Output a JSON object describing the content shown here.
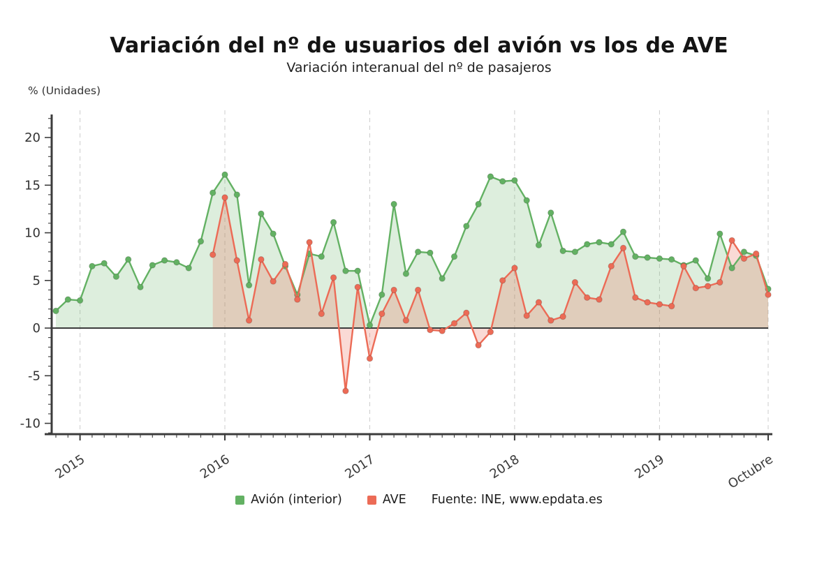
{
  "chart_data": {
    "type": "line",
    "title": "Variación del nº de usuarios del avión vs los de AVE",
    "subtitle": "Variación interanual del nº de pasajeros",
    "ylabel": "% (Unidades)",
    "source": "Fuente: INE, www.epdata.es",
    "ylim": [
      -10,
      20
    ],
    "yticks": [
      20,
      15,
      10,
      5,
      0,
      -5,
      -10
    ],
    "n_points": 60,
    "x_start": "2014-11",
    "x_tick_labels": [
      "2015",
      "2016",
      "2017",
      "2018",
      "2019",
      "Octubre"
    ],
    "x_tick_indices": [
      2,
      14,
      26,
      38,
      50,
      59
    ],
    "grid": "vertical-dashed",
    "legend_position": "bottom",
    "axis_color": "#3c3c3c",
    "grid_color": "#cccccc",
    "series": [
      {
        "name": "Avión (interior)",
        "color": "#63b163",
        "area_opacity": 0.22,
        "start_index": 0,
        "values": [
          1.8,
          3.0,
          2.9,
          6.5,
          6.8,
          5.4,
          7.2,
          4.3,
          6.6,
          7.1,
          6.9,
          6.3,
          9.1,
          14.2,
          16.1,
          14.0,
          4.5,
          12.0,
          9.9,
          6.5,
          3.5,
          7.8,
          7.5,
          11.1,
          6.0,
          6.0,
          0.3,
          3.5,
          13.0,
          5.7,
          8.0,
          7.9,
          5.2,
          7.5,
          10.7,
          13.0,
          15.9,
          15.4,
          15.5,
          13.4,
          8.7,
          12.1,
          8.1,
          8.0,
          8.8,
          9.0,
          8.8,
          10.1,
          7.5,
          7.4,
          7.3,
          7.2,
          6.6,
          7.1,
          5.2,
          9.9,
          6.3,
          8.0,
          7.6,
          4.1
        ]
      },
      {
        "name": "AVE",
        "color": "#ec6b56",
        "area_opacity": 0.25,
        "start_index": 13,
        "values": [
          7.7,
          13.7,
          7.1,
          0.8,
          7.2,
          4.9,
          6.7,
          3.0,
          9.0,
          1.5,
          5.3,
          -6.6,
          4.3,
          -3.2,
          1.5,
          4.0,
          0.8,
          4.0,
          -0.2,
          -0.3,
          0.5,
          1.6,
          -1.8,
          -0.4,
          5.0,
          6.3,
          1.3,
          2.7,
          0.8,
          1.2,
          4.8,
          3.2,
          3.0,
          6.5,
          8.4,
          3.2,
          2.7,
          2.5,
          2.3,
          6.5,
          4.2,
          4.4,
          4.8,
          9.2,
          7.3,
          7.8,
          3.5
        ]
      }
    ]
  }
}
